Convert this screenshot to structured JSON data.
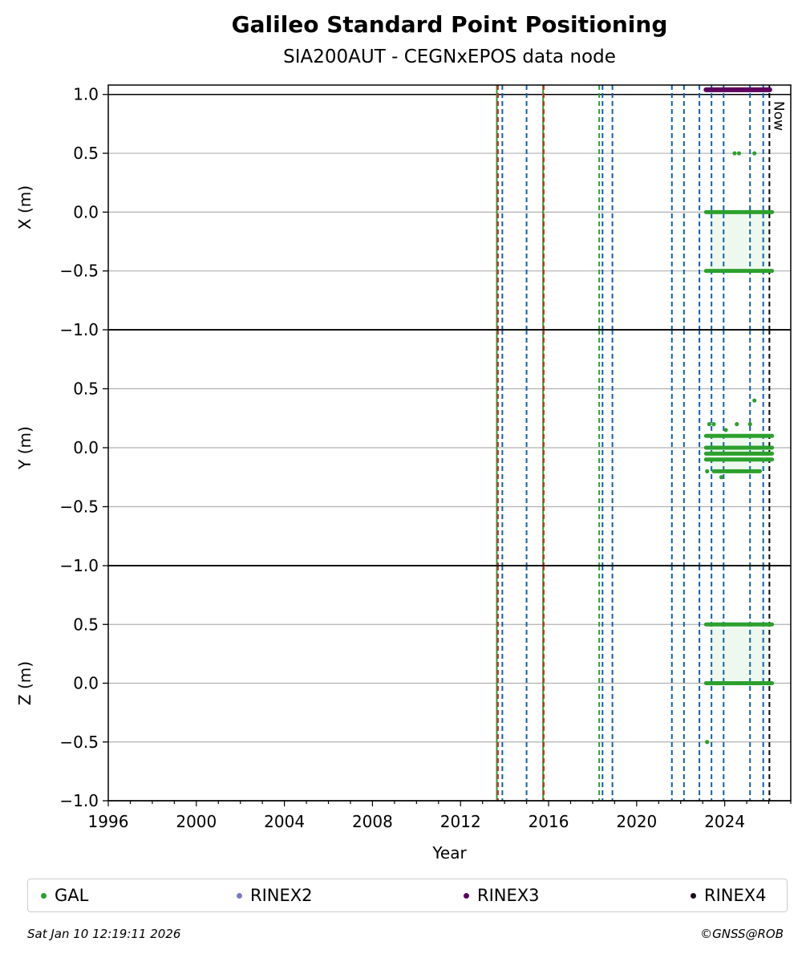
{
  "header": {
    "title": "Galileo Standard Point Positioning",
    "subtitle": "SIA200AUT - CEGNxEPOS data node"
  },
  "footer": {
    "timestamp": "Sat Jan 10 12:19:11 2026",
    "copyright": "©GNSS@ROB"
  },
  "colors": {
    "gal": "#2ca02c",
    "rinex2": "#7b7bc0",
    "rinex3": "#5e0060",
    "rinex4": "#1a0a1a",
    "event_blue": "#1060b0",
    "event_green": "#2ca02c",
    "event_red": "#d62728",
    "now_line": "#000000"
  },
  "legend": [
    {
      "label": "GAL",
      "color": "#2ca02c"
    },
    {
      "label": "RINEX2",
      "color": "#7b7bc0"
    },
    {
      "label": "RINEX3",
      "color": "#5e0060"
    },
    {
      "label": "RINEX4",
      "color": "#1a0a1a"
    }
  ],
  "chart_data": {
    "type": "scatter",
    "xlabel": "Year",
    "xlim": [
      1996,
      2027
    ],
    "xticks": [
      1996,
      2000,
      2004,
      2008,
      2012,
      2016,
      2020,
      2024
    ],
    "xtick_labels": [
      "1996",
      "2000",
      "2004",
      "2008",
      "2012",
      "2016",
      "2020",
      "2024"
    ],
    "now_label": "Now",
    "now_year": 2026.03,
    "panels": [
      {
        "ylabel": "X (m)",
        "ylim": [
          -1.0,
          1.08
        ],
        "yticks": [
          -1.0,
          -0.5,
          0.0,
          0.5,
          1.0
        ],
        "ytick_labels": [
          "−1.0",
          "−0.5",
          "0.0",
          "0.5",
          "1.0"
        ],
        "gal_levels": [
          {
            "y": 0.0,
            "x_start": 2023.15,
            "x_end": 2026.15
          },
          {
            "y": -0.5,
            "x_start": 2023.15,
            "x_end": 2026.15
          }
        ],
        "gal_points": [
          {
            "x": 2024.45,
            "y": 0.5
          },
          {
            "x": 2024.65,
            "y": 0.5
          },
          {
            "x": 2025.35,
            "y": 0.5
          }
        ],
        "rinex3_band": {
          "y": 1.04,
          "x_start": 2023.15,
          "x_end": 2026.05
        }
      },
      {
        "ylabel": "Y (m)",
        "ylim": [
          -1.0,
          1.0
        ],
        "yticks": [
          -1.0,
          -0.5,
          0.0,
          0.5
        ],
        "ytick_labels": [
          "−1.0",
          "−0.5",
          "0.0",
          "0.5"
        ],
        "gal_levels": [
          {
            "y": 0.1,
            "x_start": 2023.15,
            "x_end": 2026.15
          },
          {
            "y": 0.0,
            "x_start": 2023.15,
            "x_end": 2026.15
          },
          {
            "y": -0.05,
            "x_start": 2023.15,
            "x_end": 2026.15
          },
          {
            "y": -0.1,
            "x_start": 2023.15,
            "x_end": 2026.15
          },
          {
            "y": -0.2,
            "x_start": 2023.5,
            "x_end": 2025.6
          }
        ],
        "gal_points": [
          {
            "x": 2023.3,
            "y": 0.2
          },
          {
            "x": 2023.5,
            "y": 0.2
          },
          {
            "x": 2024.05,
            "y": 0.15
          },
          {
            "x": 2024.55,
            "y": 0.2
          },
          {
            "x": 2025.15,
            "y": 0.2
          },
          {
            "x": 2025.35,
            "y": 0.4
          },
          {
            "x": 2023.85,
            "y": -0.25
          },
          {
            "x": 2023.2,
            "y": -0.2
          },
          {
            "x": 2026.05,
            "y": -0.1
          }
        ]
      },
      {
        "ylabel": "Z (m)",
        "ylim": [
          -1.0,
          1.0
        ],
        "yticks": [
          -1.0,
          -0.5,
          0.0,
          0.5
        ],
        "ytick_labels": [
          "−1.0",
          "−0.5",
          "0.0",
          "0.5"
        ],
        "gal_levels": [
          {
            "y": 0.5,
            "x_start": 2023.15,
            "x_end": 2026.15
          },
          {
            "y": 0.0,
            "x_start": 2023.15,
            "x_end": 2026.15
          }
        ],
        "gal_points": [
          {
            "x": 2023.2,
            "y": -0.5
          }
        ]
      }
    ],
    "event_lines": [
      {
        "x": 2013.65,
        "color": "#2ca02c",
        "style": "solid"
      },
      {
        "x": 2013.7,
        "color": "#d62728",
        "style": "dashed"
      },
      {
        "x": 2013.9,
        "color": "#1060b0",
        "style": "dashed"
      },
      {
        "x": 2015.0,
        "color": "#1060b0",
        "style": "dashed"
      },
      {
        "x": 2015.75,
        "color": "#2ca02c",
        "style": "solid"
      },
      {
        "x": 2015.78,
        "color": "#d62728",
        "style": "dashed"
      },
      {
        "x": 2018.3,
        "color": "#2ca02c",
        "style": "dashed"
      },
      {
        "x": 2018.45,
        "color": "#1060b0",
        "style": "dashed"
      },
      {
        "x": 2018.9,
        "color": "#1060b0",
        "style": "dashed"
      },
      {
        "x": 2021.6,
        "color": "#1060b0",
        "style": "dashed"
      },
      {
        "x": 2022.15,
        "color": "#1060b0",
        "style": "dashed"
      },
      {
        "x": 2022.85,
        "color": "#1060b0",
        "style": "dashed"
      },
      {
        "x": 2023.4,
        "color": "#1060b0",
        "style": "dashed"
      },
      {
        "x": 2023.95,
        "color": "#1060b0",
        "style": "dashed"
      },
      {
        "x": 2025.15,
        "color": "#1060b0",
        "style": "dashed"
      },
      {
        "x": 2025.75,
        "color": "#1060b0",
        "style": "dashed"
      }
    ],
    "grid": true,
    "legend_position": "bottom"
  }
}
